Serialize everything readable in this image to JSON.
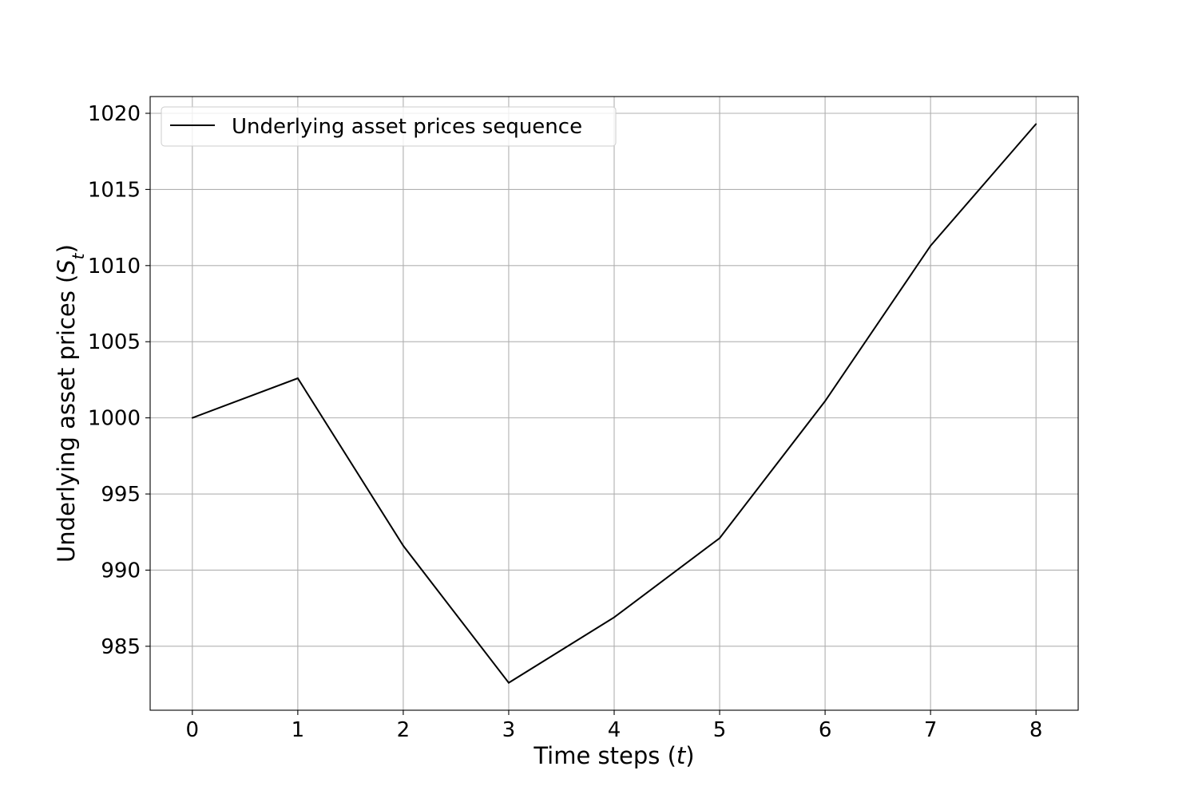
{
  "chart_data": {
    "type": "line",
    "x": [
      0,
      1,
      2,
      3,
      4,
      5,
      6,
      7,
      8
    ],
    "series": [
      {
        "name": "Underlying asset prices sequence",
        "color": "#000000",
        "values": [
          1000.0,
          1002.6,
          991.6,
          982.6,
          986.9,
          992.1,
          1001.1,
          1011.3,
          1019.3
        ]
      }
    ],
    "xlabel": {
      "main": "Time steps (",
      "var": "t",
      "close": ")"
    },
    "ylabel": {
      "main": "Underlying asset prices (",
      "var": "S",
      "sub": "t",
      "close": ")"
    },
    "xlim": [
      -0.4,
      8.4
    ],
    "ylim": [
      980.8,
      1021.1
    ],
    "xticks": [
      0,
      1,
      2,
      3,
      4,
      5,
      6,
      7,
      8
    ],
    "yticks": [
      985,
      990,
      995,
      1000,
      1005,
      1010,
      1015,
      1020
    ],
    "grid": true,
    "legend_position": "upper-left"
  }
}
